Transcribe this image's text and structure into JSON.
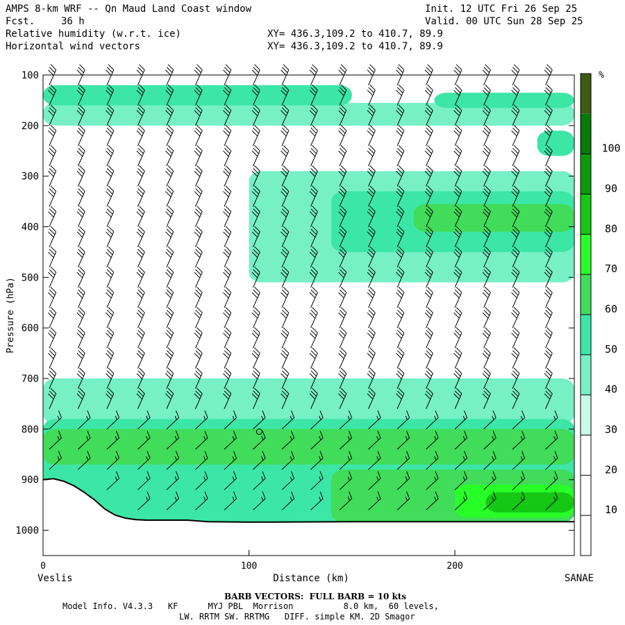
{
  "header": {
    "title": "AMPS 8-km WRF -- Qn Maud Land Coast window",
    "fcst_label": "Fcst.",
    "fcst_value": "36 h",
    "init": "Init. 12 UTC Fri 26 Sep 25",
    "valid": "Valid. 00 UTC Sun 28 Sep 25",
    "field1": "Relative humidity (w.r.t. ice)",
    "field2": "Horizontal wind vectors",
    "xy1": "XY= 436.3,109.2 to 410.7, 89.9",
    "xy2": "XY= 436.3,109.2 to 410.7, 89.9"
  },
  "footer": {
    "barb": "BARB VECTORS:  FULL BARB = 10 kts",
    "model1": "Model Info. V4.3.3   KF      MYJ PBL  Morrison          8.0 km,  60 levels,",
    "model2": "LW. RRTM SW. RRTMG   DIFF. simple KM. 2D Smagor"
  },
  "chart_data": {
    "type": "heatmap",
    "title": "Relative humidity (w.r.t. ice)",
    "xlabel": "Distance (km)",
    "ylabel": "Pressure (hPa)",
    "xlim": [
      0,
      258
    ],
    "ylim": [
      1050,
      100
    ],
    "x_ticks": [
      0,
      100,
      200
    ],
    "y_ticks": [
      100,
      200,
      300,
      400,
      500,
      600,
      700,
      800,
      900,
      1000
    ],
    "x_endpoints": [
      "Veslis",
      "SANAE"
    ],
    "colorbar": {
      "unit": "%",
      "levels": [
        10,
        20,
        30,
        40,
        50,
        60,
        70,
        80,
        90,
        100
      ],
      "colors": [
        "#ffffff",
        "#ffffff",
        "#ffffff",
        "#c8fae6",
        "#76f0c4",
        "#3ce6a6",
        "#40dc5a",
        "#28ff28",
        "#14c814",
        "#0a9a0a",
        "#067a06",
        "#3d5c14"
      ]
    },
    "terrain_km_hpa": [
      [
        0,
        900
      ],
      [
        5,
        898
      ],
      [
        10,
        903
      ],
      [
        15,
        912
      ],
      [
        20,
        925
      ],
      [
        25,
        940
      ],
      [
        30,
        958
      ],
      [
        35,
        970
      ],
      [
        40,
        976
      ],
      [
        45,
        979
      ],
      [
        50,
        980
      ],
      [
        70,
        980
      ],
      [
        80,
        983
      ],
      [
        100,
        984
      ],
      [
        150,
        983
      ],
      [
        200,
        983
      ],
      [
        258,
        983
      ]
    ],
    "rh_bands": [
      {
        "x": [
          0,
          258
        ],
        "p": [
          155,
          200
        ],
        "rh": 30
      },
      {
        "x": [
          0,
          150
        ],
        "p": [
          120,
          160
        ],
        "rh": 40
      },
      {
        "x": [
          190,
          258
        ],
        "p": [
          135,
          165
        ],
        "rh": 40
      },
      {
        "x": [
          240,
          258
        ],
        "p": [
          210,
          260
        ],
        "rh": 40
      },
      {
        "x": [
          100,
          258
        ],
        "p": [
          290,
          510
        ],
        "rh": 30
      },
      {
        "x": [
          140,
          258
        ],
        "p": [
          330,
          450
        ],
        "rh": 40
      },
      {
        "x": [
          180,
          258
        ],
        "p": [
          355,
          410
        ],
        "rh": 50
      },
      {
        "x": [
          185,
          240
        ],
        "p": [
          365,
          400
        ],
        "rh": 55
      },
      {
        "x": [
          0,
          258
        ],
        "p": [
          700,
          790
        ],
        "rh": 30
      },
      {
        "x": [
          0,
          258
        ],
        "p": [
          780,
          985
        ],
        "rh": 40
      },
      {
        "x": [
          0,
          258
        ],
        "p": [
          800,
          870
        ],
        "rh": 50
      },
      {
        "x": [
          140,
          258
        ],
        "p": [
          880,
          985
        ],
        "rh": 50
      },
      {
        "x": [
          200,
          258
        ],
        "p": [
          910,
          975
        ],
        "rh": 65
      },
      {
        "x": [
          215,
          258
        ],
        "p": [
          925,
          965
        ],
        "rh": 75
      }
    ],
    "wind_barbs": {
      "columns_km": [
        3,
        17,
        31,
        46,
        60,
        74,
        88,
        102,
        116,
        130,
        144,
        158,
        172,
        186,
        200,
        214,
        228,
        244
      ],
      "levels_hpa": [
        120,
        160,
        200,
        240,
        280,
        320,
        360,
        400,
        440,
        480,
        520,
        560,
        600,
        640,
        680,
        720,
        760,
        800,
        840,
        880,
        920,
        960
      ],
      "speed_kts_upper": 30,
      "speed_kts_lower": 15
    }
  }
}
